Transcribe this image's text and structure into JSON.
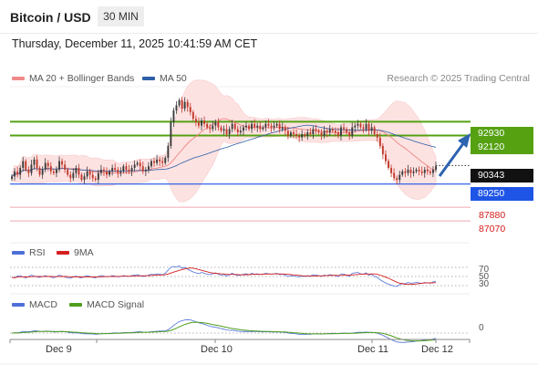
{
  "header": {
    "title": "Bitcoin / USD",
    "timeframe": "30 MIN",
    "datetime": "Thursday, December 11, 2025 10:41:59 AM CET"
  },
  "legend_main": [
    {
      "label": "MA 20 + Bollinger Bands",
      "color": "#f08a8a"
    },
    {
      "label": "MA 50",
      "color": "#2e5fa8"
    }
  ],
  "credit": "Research © 2025 Trading Central",
  "colors": {
    "resistance": "#55a112",
    "support": "#1f55e6",
    "support_light": "#f0a8b0",
    "current": "#111111",
    "bollinger": "#fde2e2",
    "ma20": "#ef7b7b",
    "ma50": "#2e5fa8",
    "rsi": "#4f6fd8",
    "rsi_ma": "#d61f1f",
    "macd": "#4f6fd8",
    "macd_signal": "#4f9e1c",
    "arrow": "#2d63b0"
  },
  "chart_data": [
    {
      "type": "candlestick",
      "x_ticks": [
        "Dec 9",
        "Dec 10",
        "Dec 11",
        "Dec 12"
      ],
      "y_range": [
        86000,
        95000
      ],
      "price_levels": [
        {
          "value": 92930,
          "label": "92930",
          "kind": "resistance"
        },
        {
          "value": 92120,
          "label": "92120",
          "kind": "resistance"
        },
        {
          "value": 90343,
          "label": "90343",
          "kind": "current"
        },
        {
          "value": 89250,
          "label": "89250",
          "kind": "support"
        },
        {
          "value": 87880,
          "label": "87880",
          "kind": "support_light"
        },
        {
          "value": 87070,
          "label": "87070",
          "kind": "support_light"
        }
      ],
      "close": [
        89700,
        90000,
        89800,
        90200,
        90600,
        90100,
        89900,
        90400,
        90700,
        90200,
        89800,
        90100,
        90500,
        90300,
        90000,
        89900,
        90100,
        90600,
        90400,
        90100,
        89800,
        89600,
        89900,
        90200,
        89800,
        89500,
        89700,
        90000,
        89800,
        89600,
        89500,
        89900,
        90100,
        90000,
        89800,
        90000,
        90200,
        90100,
        89900,
        90000,
        90300,
        90100,
        90000,
        90200,
        90400,
        90500,
        90300,
        90000,
        90100,
        90300,
        90600,
        90500,
        90700,
        90600,
        90500,
        90800,
        91500,
        92900,
        93600,
        93900,
        94200,
        93700,
        94100,
        93800,
        93500,
        93100,
        92900,
        92700,
        93000,
        92800,
        92600,
        92500,
        92700,
        92900,
        92600,
        92400,
        92500,
        92200,
        92500,
        92800,
        92500,
        92300,
        92400,
        92600,
        92700,
        92500,
        92800,
        92600,
        92700,
        92500,
        92600,
        92800,
        92700,
        92600,
        92700,
        92800,
        92500,
        92600,
        92400,
        92100,
        92300,
        92200,
        92100,
        92000,
        92200,
        92100,
        92300,
        92200,
        92500,
        92400,
        92300,
        92100,
        92400,
        92300,
        92500,
        92400,
        92300,
        92100,
        92600,
        92500,
        92300,
        92100,
        92600,
        92700,
        92800,
        92600,
        92500,
        92800,
        92400,
        92600,
        92200,
        92000,
        91500,
        91000,
        90600,
        90200,
        89900,
        89600,
        89500,
        89800,
        90000,
        89900,
        90100,
        89900,
        90000,
        90100,
        90000,
        89900,
        90100,
        90000,
        89900,
        90100,
        90300
      ],
      "rsi_levels": [
        70,
        50,
        30
      ],
      "rsi": [
        48,
        47,
        51,
        52,
        49,
        47,
        50,
        53,
        51,
        49,
        48,
        50,
        52,
        50,
        49,
        47,
        50,
        53,
        51,
        49,
        47,
        46,
        49,
        51,
        48,
        47,
        50,
        52,
        50,
        48,
        47,
        50,
        52,
        51,
        49,
        50,
        52,
        51,
        49,
        50,
        52,
        51,
        50,
        52,
        53,
        54,
        52,
        50,
        51,
        53,
        55,
        54,
        56,
        55,
        54,
        57,
        64,
        70,
        72,
        71,
        73,
        68,
        70,
        66,
        63,
        60,
        58,
        56,
        59,
        57,
        55,
        54,
        56,
        58,
        55,
        53,
        54,
        51,
        54,
        57,
        54,
        52,
        53,
        55,
        56,
        54,
        57,
        55,
        56,
        54,
        55,
        57,
        56,
        55,
        56,
        57,
        54,
        55,
        53,
        50,
        52,
        51,
        50,
        49,
        51,
        50,
        52,
        51,
        54,
        53,
        52,
        50,
        53,
        52,
        54,
        53,
        52,
        50,
        56,
        55,
        53,
        50,
        57,
        58,
        59,
        56,
        55,
        58,
        53,
        55,
        50,
        48,
        43,
        39,
        36,
        33,
        31,
        29,
        28,
        32,
        35,
        34,
        37,
        35,
        36,
        37,
        36,
        35,
        37,
        36,
        35,
        38,
        40
      ],
      "macd_zero": 0
    }
  ],
  "indicators": {
    "rsi": {
      "legend": [
        {
          "label": "RSI",
          "color": "#4f6fd8"
        },
        {
          "label": "9MA",
          "color": "#d61f1f"
        }
      ],
      "levels": [
        "70",
        "50",
        "30"
      ]
    },
    "macd": {
      "legend": [
        {
          "label": "MACD",
          "color": "#4f6fd8"
        },
        {
          "label": "MACD Signal",
          "color": "#4f9e1c"
        }
      ],
      "zero_label": "0"
    }
  }
}
